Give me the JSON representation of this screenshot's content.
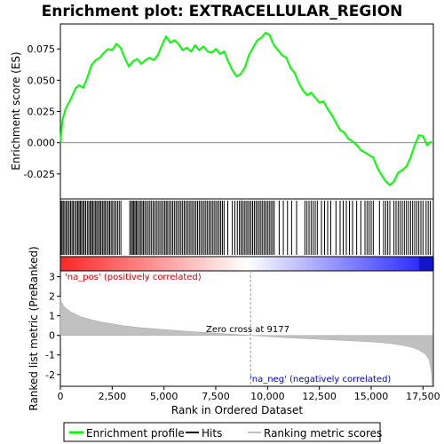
{
  "chart_data": [
    {
      "type": "line",
      "title": "Enrichment plot: EXTRACELLULAR_REGION",
      "ylabel": "Enrichment score (ES)",
      "ylim": [
        -0.045,
        0.095
      ],
      "yticks": [
        "-0.025",
        "0.000",
        "0.025",
        "0.050",
        "0.075"
      ],
      "ytick_values": [
        -0.025,
        0.0,
        0.025,
        0.05,
        0.075
      ],
      "series": [
        {
          "name": "Enrichment profile",
          "color": "#00ff00",
          "x": [
            0,
            100,
            250,
            500,
            750,
            900,
            1100,
            1300,
            1500,
            1700,
            1900,
            2100,
            2300,
            2500,
            2700,
            2900,
            3100,
            3300,
            3500,
            3700,
            3900,
            4100,
            4300,
            4500,
            4700,
            4900,
            5100,
            5300,
            5500,
            5700,
            5900,
            6100,
            6300,
            6500,
            6700,
            6900,
            7100,
            7300,
            7500,
            7700,
            7900,
            8100,
            8300,
            8500,
            8700,
            8900,
            9100,
            9300,
            9500,
            9700,
            9900,
            10100,
            10300,
            10500,
            10700,
            10900,
            11100,
            11300,
            11500,
            11700,
            11900,
            12100,
            12300,
            12500,
            12700,
            12900,
            13100,
            13300,
            13500,
            13700,
            13900,
            14100,
            14300,
            14500,
            14700,
            14900,
            15100,
            15300,
            15500,
            15700,
            15900,
            16100,
            16300,
            16500,
            16700,
            16900,
            17100,
            17300,
            17500,
            17700,
            17900
          ],
          "y": [
            0.0,
            0.018,
            0.027,
            0.035,
            0.044,
            0.046,
            0.044,
            0.052,
            0.062,
            0.066,
            0.068,
            0.072,
            0.075,
            0.074,
            0.079,
            0.076,
            0.068,
            0.061,
            0.065,
            0.067,
            0.063,
            0.066,
            0.068,
            0.066,
            0.07,
            0.078,
            0.085,
            0.08,
            0.082,
            0.079,
            0.074,
            0.076,
            0.073,
            0.078,
            0.074,
            0.077,
            0.073,
            0.072,
            0.075,
            0.071,
            0.073,
            0.065,
            0.058,
            0.053,
            0.055,
            0.06,
            0.07,
            0.076,
            0.082,
            0.084,
            0.088,
            0.086,
            0.078,
            0.074,
            0.07,
            0.068,
            0.06,
            0.056,
            0.048,
            0.042,
            0.038,
            0.04,
            0.036,
            0.032,
            0.033,
            0.027,
            0.022,
            0.016,
            0.01,
            0.008,
            0.003,
            0.001,
            -0.002,
            -0.006,
            -0.008,
            -0.01,
            -0.012,
            -0.02,
            -0.026,
            -0.031,
            -0.034,
            -0.031,
            -0.024,
            -0.022,
            -0.019,
            -0.012,
            -0.002,
            0.006,
            0.005,
            -0.002,
            0.001
          ]
        }
      ]
    },
    {
      "type": "area",
      "xlabel": "Rank in Ordered Dataset",
      "ylabel": "Ranked list metric (PreRanked)",
      "xlim": [
        0,
        18000
      ],
      "ylim": [
        -2.6,
        3.3
      ],
      "xticks": [
        "0",
        "2,500",
        "5,000",
        "7,500",
        "10,000",
        "12,500",
        "15,000",
        "17,500"
      ],
      "xtick_values": [
        0,
        2500,
        5000,
        7500,
        10000,
        12500,
        15000,
        17500
      ],
      "yticks": [
        "-2",
        "-1",
        "0",
        "1",
        "2",
        "3"
      ],
      "ytick_values": [
        -2,
        -1,
        0,
        1,
        2,
        3
      ],
      "series": [
        {
          "name": "Ranking metric scores",
          "color": "#c0c0c0",
          "x": [
            0,
            50,
            200,
            500,
            1000,
            1500,
            2000,
            3000,
            4000,
            5000,
            6000,
            7000,
            8000,
            9177,
            10000,
            11000,
            12000,
            13000,
            14000,
            15000,
            15500,
            16000,
            16500,
            17000,
            17300,
            17600,
            17800,
            17900,
            17950
          ],
          "y": [
            1.95,
            1.7,
            1.45,
            1.2,
            0.95,
            0.8,
            0.68,
            0.5,
            0.38,
            0.3,
            0.22,
            0.15,
            0.08,
            0.0,
            -0.06,
            -0.12,
            -0.17,
            -0.22,
            -0.27,
            -0.33,
            -0.37,
            -0.42,
            -0.5,
            -0.62,
            -0.75,
            -0.95,
            -1.25,
            -1.8,
            -2.55
          ]
        }
      ],
      "annotations": [
        "'na_pos' (positively correlated)",
        "Zero cross at 9177",
        "'na_neg' (negatively correlated)"
      ],
      "zero_cross": 9177
    }
  ],
  "hits": {
    "label": "Hits",
    "color": "#000000",
    "positions": [
      30,
      80,
      140,
      210,
      280,
      350,
      420,
      490,
      560,
      620,
      700,
      770,
      840,
      900,
      960,
      1020,
      1090,
      1150,
      1220,
      1300,
      1370,
      1440,
      1500,
      1560,
      1630,
      1700,
      1760,
      1830,
      1900,
      1960,
      2030,
      2100,
      2160,
      2240,
      2310,
      2380,
      2450,
      2520,
      2600,
      2680,
      2760,
      2840,
      2920,
      3350,
      3420,
      3480,
      3540,
      3600,
      3660,
      3720,
      3800,
      3870,
      3940,
      4010,
      4080,
      4160,
      4240,
      4320,
      4400,
      4480,
      4560,
      4640,
      4720,
      4800,
      4880,
      4960,
      5040,
      5110,
      5180,
      5260,
      5340,
      5420,
      5500,
      5580,
      5660,
      5740,
      5820,
      5900,
      5980,
      6060,
      6140,
      6220,
      6300,
      6380,
      6460,
      6540,
      6620,
      6700,
      6780,
      6860,
      6940,
      7020,
      7100,
      7180,
      7260,
      7340,
      7420,
      7500,
      7580,
      7660,
      7740,
      7820,
      7900,
      8080,
      8300,
      8420,
      8540,
      8640,
      8720,
      8800,
      8880,
      8960,
      9040,
      9120,
      9200,
      9280,
      9360,
      9440,
      9520,
      9600,
      9680,
      9760,
      9840,
      9920,
      10000,
      10080,
      10160,
      10240,
      10320,
      10560,
      10760,
      10960,
      11160,
      11400,
      11800,
      11900,
      12000,
      12100,
      12200,
      12300,
      12400,
      12600,
      12750,
      12900,
      13050,
      13300,
      13500,
      13650,
      13800,
      13950,
      14100,
      14300,
      14500,
      14700,
      14800,
      14900,
      15000,
      15100,
      15400,
      15600,
      15700,
      15800,
      15900,
      16100,
      16200,
      16300,
      16400,
      16500,
      16600,
      16700,
      16800,
      16900,
      17000,
      17100,
      17200,
      17300,
      17400,
      17500,
      17650,
      17750,
      17850
    ]
  },
  "legend": {
    "items": [
      {
        "label": "Enrichment profile",
        "color": "#00ff00"
      },
      {
        "label": "Hits",
        "color": "#000000"
      },
      {
        "label": "Ranking metric scores",
        "color": "#c0c0c0"
      }
    ]
  }
}
